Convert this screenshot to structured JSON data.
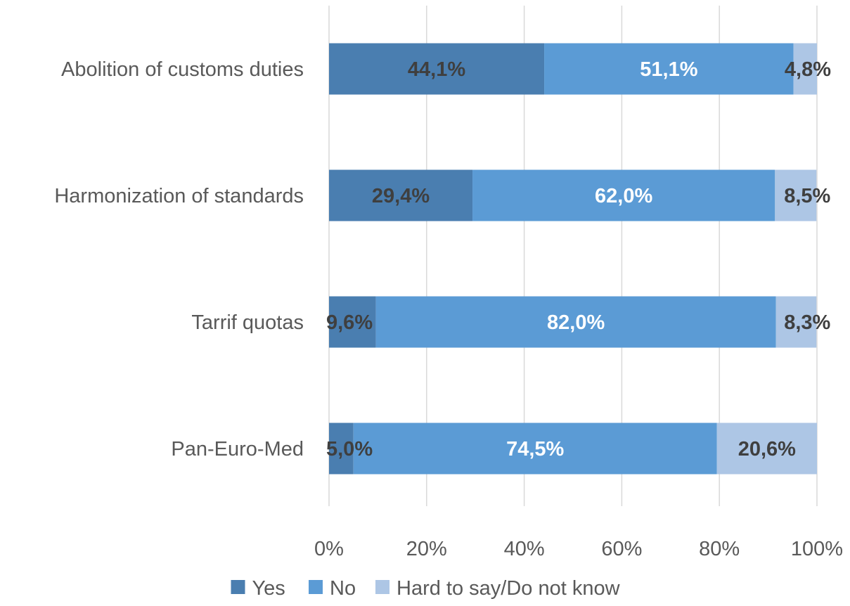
{
  "chart_data": {
    "type": "bar",
    "orientation": "horizontal",
    "stacked": "percent",
    "title": "",
    "xlabel": "",
    "ylabel": "",
    "xlim": [
      0,
      100
    ],
    "grid": true,
    "legend_position": "bottom",
    "categories": [
      "Abolition of customs duties",
      "Harmonization of standards",
      "Tarrif quotas",
      "Pan-Euro-Med"
    ],
    "series": [
      {
        "name": "Yes",
        "color": "#4a7eb0",
        "label_color": "#3f3f3f",
        "values": [
          44.1,
          29.4,
          9.6,
          5.0
        ],
        "labels": [
          "44,1%",
          "29,4%",
          "9,6%",
          "5,0%"
        ]
      },
      {
        "name": "No",
        "color": "#5b9bd5",
        "label_color": "#ffffff",
        "values": [
          51.1,
          62.0,
          82.0,
          74.5
        ],
        "labels": [
          "51,1%",
          "62,0%",
          "82,0%",
          "74,5%"
        ]
      },
      {
        "name": "Hard to say/Do not know",
        "color": "#adc6e5",
        "label_color": "#3f3f3f",
        "values": [
          4.8,
          8.5,
          8.3,
          20.6
        ],
        "labels": [
          "4,8%",
          "8,5%",
          "8,3%",
          "20,6%"
        ]
      }
    ],
    "x_ticks": [
      "0%",
      "20%",
      "40%",
      "60%",
      "80%",
      "100%"
    ]
  }
}
